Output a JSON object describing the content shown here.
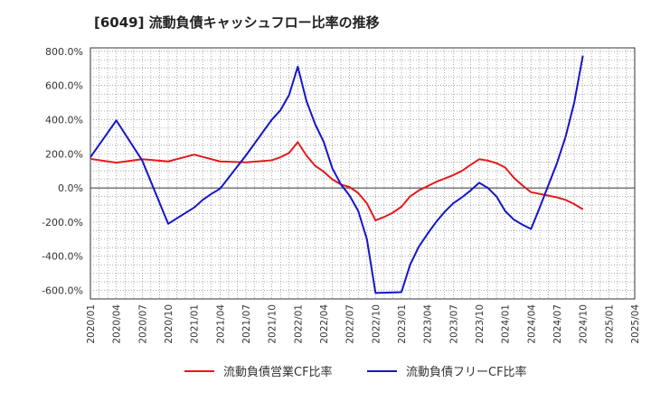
{
  "chart_data": {
    "type": "line",
    "title": "[6049]  流動負債キャッシュフロー比率の推移",
    "xlabel": "",
    "ylabel": "",
    "ylim": [
      -650,
      820
    ],
    "y_ticks": [
      800,
      600,
      400,
      200,
      0,
      -200,
      -400,
      -600
    ],
    "y_tick_labels": [
      "800.0%",
      "600.0%",
      "400.0%",
      "200.0%",
      "0.0%",
      "-200.0%",
      "-400.0%",
      "-600.0%"
    ],
    "x_tick_labels": [
      "2020/01",
      "2020/04",
      "2020/07",
      "2020/10",
      "2021/01",
      "2021/04",
      "2021/07",
      "2021/10",
      "2022/01",
      "2022/04",
      "2022/07",
      "2022/10",
      "2023/01",
      "2023/04",
      "2023/07",
      "2023/10",
      "2024/01",
      "2024/04",
      "2024/07",
      "2024/10",
      "2025/01",
      "2025/04"
    ],
    "grid": true,
    "legend_position": "bottom",
    "series": [
      {
        "name": "流動負債営業CF比率",
        "color": "#e31a1c",
        "x": [
          "2020/01",
          "2020/04",
          "2020/07",
          "2020/10",
          "2021/01",
          "2021/04",
          "2021/07",
          "2021/10",
          "2021/11",
          "2021/12",
          "2022/01",
          "2022/02",
          "2022/03",
          "2022/04",
          "2022/05",
          "2022/06",
          "2022/07",
          "2022/08",
          "2022/09",
          "2022/10",
          "2022/11",
          "2022/12",
          "2023/01",
          "2023/02",
          "2023/03",
          "2023/04",
          "2023/05",
          "2023/06",
          "2023/07",
          "2023/08",
          "2023/09",
          "2023/10",
          "2023/11",
          "2023/12",
          "2024/01",
          "2024/02",
          "2024/03",
          "2024/04",
          "2024/05",
          "2024/06",
          "2024/07",
          "2024/08",
          "2024/09",
          "2024/10"
        ],
        "y": [
          170,
          148,
          168,
          155,
          195,
          155,
          150,
          162,
          180,
          205,
          268,
          190,
          130,
          95,
          50,
          20,
          5,
          -30,
          -90,
          -190,
          -170,
          -145,
          -110,
          -50,
          -15,
          10,
          35,
          55,
          75,
          100,
          135,
          168,
          160,
          145,
          120,
          60,
          15,
          -25,
          -35,
          -45,
          -55,
          -70,
          -95,
          -125
        ]
      },
      {
        "name": "流動負債フリーCF比率",
        "color": "#1515c8",
        "x": [
          "2020/01",
          "2020/04",
          "2020/07",
          "2020/10",
          "2021/01",
          "2021/02",
          "2021/03",
          "2021/04",
          "2021/07",
          "2021/10",
          "2021/11",
          "2021/12",
          "2022/01",
          "2022/02",
          "2022/03",
          "2022/04",
          "2022/05",
          "2022/06",
          "2022/07",
          "2022/08",
          "2022/09",
          "2022/10",
          "2023/01",
          "2023/02",
          "2023/03",
          "2023/04",
          "2023/05",
          "2023/06",
          "2023/07",
          "2023/08",
          "2023/09",
          "2023/10",
          "2023/11",
          "2023/12",
          "2024/01",
          "2024/02",
          "2024/03",
          "2024/04",
          "2024/05",
          "2024/06",
          "2024/07",
          "2024/08",
          "2024/09",
          "2024/10"
        ],
        "y": [
          180,
          395,
          160,
          -210,
          -115,
          -70,
          -35,
          -5,
          190,
          400,
          455,
          545,
          710,
          510,
          375,
          270,
          115,
          20,
          -45,
          -135,
          -300,
          -615,
          -610,
          -450,
          -345,
          -270,
          -200,
          -140,
          -90,
          -55,
          -15,
          30,
          0,
          -50,
          -135,
          -185,
          -215,
          -240,
          -115,
          15,
          145,
          300,
          500,
          775
        ]
      }
    ]
  }
}
